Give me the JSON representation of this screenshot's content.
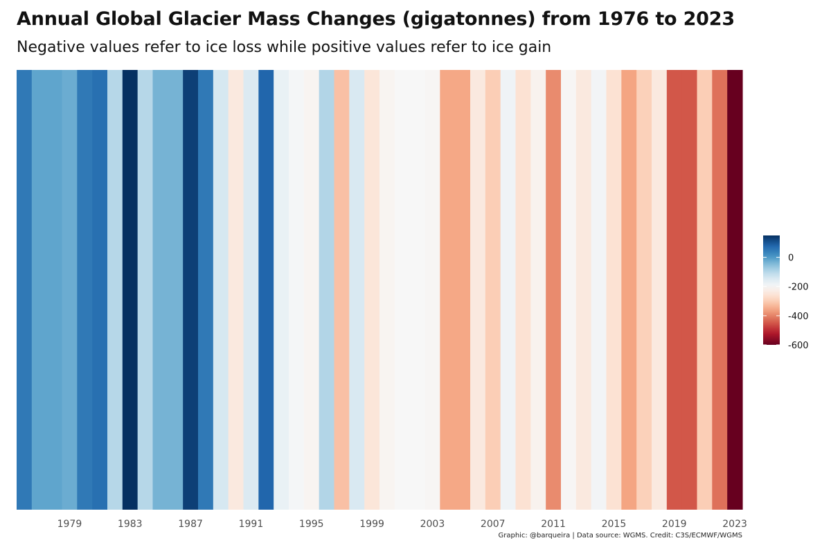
{
  "header": {
    "title": "Annual Global Glacier Mass Changes (gigatonnes) from 1976 to 2023",
    "subtitle": "Negative values refer to ice loss while positive values refer to ice gain"
  },
  "caption": "Graphic: @barqueira | Data source: WGMS. Credit: C3S/ECMWF/WGMS",
  "colors": {
    "scale": [
      "#67001f",
      "#b2182b",
      "#d6604d",
      "#f4a582",
      "#fddbc7",
      "#f7f7f7",
      "#d1e5f0",
      "#92c5de",
      "#4393c3",
      "#2166ac",
      "#053061"
    ],
    "background": "#ffffff"
  },
  "chart_data": {
    "type": "heatmap",
    "title": "Annual Global Glacier Mass Changes (gigatonnes) from 1976 to 2023",
    "subtitle": "Negative values refer to ice loss while positive values refer to ice gain",
    "x": [
      1976,
      1977,
      1978,
      1979,
      1980,
      1981,
      1982,
      1983,
      1984,
      1985,
      1986,
      1987,
      1988,
      1989,
      1990,
      1991,
      1992,
      1993,
      1994,
      1995,
      1996,
      1997,
      1998,
      1999,
      2000,
      2001,
      2002,
      2003,
      2004,
      2005,
      2006,
      2007,
      2008,
      2009,
      2010,
      2011,
      2012,
      2013,
      2014,
      2015,
      2016,
      2017,
      2018,
      2019,
      2020,
      2021,
      2022,
      2023
    ],
    "values": [
      50,
      -15,
      -15,
      -25,
      50,
      65,
      -100,
      150,
      -100,
      -35,
      -35,
      130,
      50,
      -140,
      -240,
      -150,
      80,
      -175,
      -195,
      -210,
      -95,
      -320,
      -145,
      -250,
      -210,
      -200,
      -200,
      -205,
      -355,
      -355,
      -240,
      -300,
      -185,
      -260,
      -215,
      -390,
      -205,
      -240,
      -190,
      -260,
      -360,
      -295,
      -240,
      -450,
      -450,
      -300,
      -420,
      -600
    ],
    "xticks": [
      1979,
      1983,
      1987,
      1991,
      1995,
      1999,
      2003,
      2007,
      2011,
      2015,
      2019,
      2023
    ],
    "legend": {
      "ticks": [
        0,
        -200,
        -400,
        -600
      ],
      "limits": [
        -600,
        150
      ],
      "position": "right"
    },
    "grid": false
  }
}
